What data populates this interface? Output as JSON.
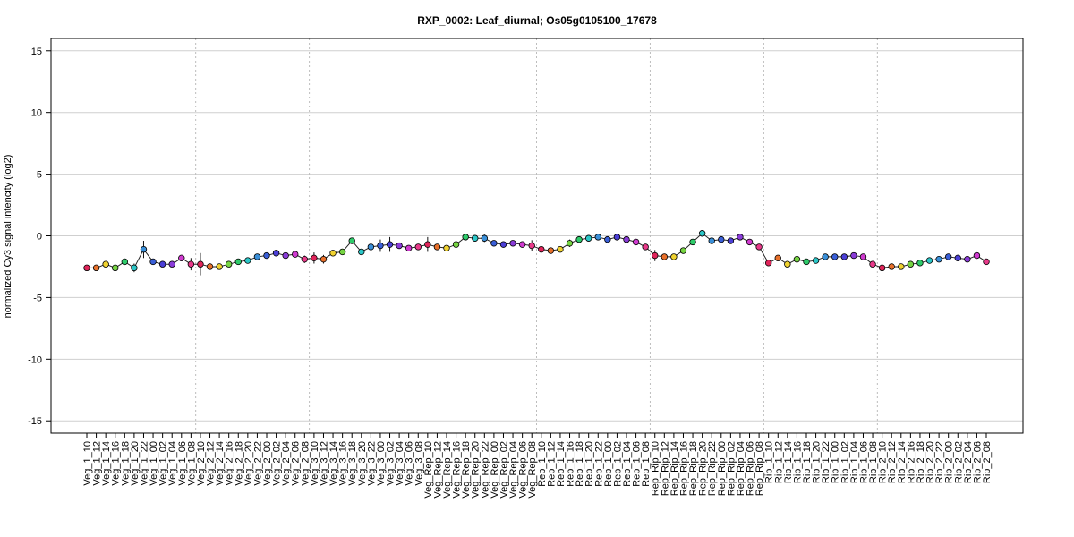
{
  "chart_data": {
    "type": "line",
    "title": "RXP_0002: Leaf_diurnal; Os05g0105100_17678",
    "xlabel": "",
    "ylabel": "normalized Cy3 signal intencity (log2)",
    "ylim": [
      -16,
      16
    ],
    "yticks": [
      -15,
      -10,
      -5,
      0,
      5,
      10,
      15
    ],
    "grid": "horizontal at y ticks; dotted vertical separators between groups",
    "categories": [
      "Veg_1_10",
      "Veg_1_12",
      "Veg_1_14",
      "Veg_1_16",
      "Veg_1_18",
      "Veg_1_20",
      "Veg_1_22",
      "Veg_1_00",
      "Veg_1_02",
      "Veg_1_04",
      "Veg_1_06",
      "Veg_1_08",
      "Veg_2_10",
      "Veg_2_12",
      "Veg_2_14",
      "Veg_2_16",
      "Veg_2_18",
      "Veg_2_20",
      "Veg_2_22",
      "Veg_2_00",
      "Veg_2_02",
      "Veg_2_04",
      "Veg_2_06",
      "Veg_2_08",
      "Veg_3_10",
      "Veg_3_12",
      "Veg_3_14",
      "Veg_3_16",
      "Veg_3_18",
      "Veg_3_20",
      "Veg_3_22",
      "Veg_3_00",
      "Veg_3_02",
      "Veg_3_04",
      "Veg_3_06",
      "Veg_3_08",
      "Veg_Rep_10",
      "Veg_Rep_12",
      "Veg_Rep_14",
      "Veg_Rep_16",
      "Veg_Rep_18",
      "Veg_Rep_20",
      "Veg_Rep_22",
      "Veg_Rep_00",
      "Veg_Rep_02",
      "Veg_Rep_04",
      "Veg_Rep_06",
      "Veg_Rep_08",
      "Rep_1_10",
      "Rep_1_12",
      "Rep_1_14",
      "Rep_1_16",
      "Rep_1_18",
      "Rep_1_20",
      "Rep_1_22",
      "Rep_1_00",
      "Rep_1_02",
      "Rep_1_04",
      "Rep_1_06",
      "Rep_1_08",
      "Rep_Rip_10",
      "Rep_Rip_12",
      "Rep_Rip_14",
      "Rep_Rip_16",
      "Rep_Rip_18",
      "Rep_Rip_20",
      "Rep_Rip_22",
      "Rep_Rip_00",
      "Rep_Rip_02",
      "Rep_Rip_04",
      "Rep_Rip_06",
      "Rep_Rip_08",
      "Rip_1_10",
      "Rip_1_12",
      "Rip_1_14",
      "Rip_1_16",
      "Rip_1_18",
      "Rip_1_20",
      "Rip_1_22",
      "Rip_1_00",
      "Rip_1_02",
      "Rip_1_04",
      "Rip_1_06",
      "Rip_1_08",
      "Rip_2_10",
      "Rip_2_12",
      "Rip_2_14",
      "Rip_2_16",
      "Rip_2_18",
      "Rip_2_20",
      "Rip_2_22",
      "Rip_2_00",
      "Rip_2_02",
      "Rip_2_04",
      "Rip_2_06",
      "Rip_2_08"
    ],
    "values": [
      -2.6,
      -2.6,
      -2.3,
      -2.6,
      -2.1,
      -2.6,
      -1.1,
      -2.1,
      -2.3,
      -2.3,
      -1.8,
      -2.3,
      -2.3,
      -2.5,
      -2.5,
      -2.3,
      -2.1,
      -2.0,
      -1.7,
      -1.6,
      -1.4,
      -1.6,
      -1.5,
      -1.9,
      -1.8,
      -1.9,
      -1.4,
      -1.3,
      -0.4,
      -1.3,
      -0.9,
      -0.8,
      -0.7,
      -0.8,
      -1.0,
      -0.9,
      -0.7,
      -0.9,
      -1.0,
      -0.7,
      -0.1,
      -0.2,
      -0.2,
      -0.6,
      -0.7,
      -0.6,
      -0.7,
      -0.8,
      -1.1,
      -1.2,
      -1.1,
      -0.6,
      -0.3,
      -0.2,
      -0.1,
      -0.3,
      -0.1,
      -0.3,
      -0.5,
      -0.9,
      -1.6,
      -1.7,
      -1.7,
      -1.2,
      -0.5,
      0.2,
      -0.4,
      -0.3,
      -0.4,
      -0.1,
      -0.5,
      -0.9,
      -2.2,
      -1.8,
      -2.3,
      -1.9,
      -2.1,
      -2.0,
      -1.7,
      -1.7,
      -1.7,
      -1.6,
      -1.7,
      -2.3,
      -2.6,
      -2.5,
      -2.5,
      -2.3,
      -2.2,
      -2.0,
      -1.9,
      -1.7,
      -1.8,
      -1.9,
      -1.6,
      -2.1
    ],
    "errors": [
      0.15,
      0.1,
      0.1,
      0.1,
      0.1,
      0.35,
      0.7,
      0.1,
      0.1,
      0.1,
      0.1,
      0.5,
      0.9,
      0.1,
      0.1,
      0.1,
      0.1,
      0.1,
      0.1,
      0.1,
      0.25,
      0.1,
      0.2,
      0.3,
      0.45,
      0.35,
      0.1,
      0.1,
      0.2,
      0.2,
      0.25,
      0.5,
      0.6,
      0.2,
      0.2,
      0.25,
      0.6,
      0.2,
      0.2,
      0.15,
      0.1,
      0.1,
      0.3,
      0.1,
      0.1,
      0.1,
      0.1,
      0.45,
      0.1,
      0.1,
      0.1,
      0.3,
      0.15,
      0.15,
      0.1,
      0.1,
      0.1,
      0.1,
      0.1,
      0.1,
      0.45,
      0.1,
      0.1,
      0.1,
      0.1,
      0.2,
      0.1,
      0.1,
      0.1,
      0.1,
      0.1,
      0.1,
      0.1,
      0.15,
      0.1,
      0.1,
      0.1,
      0.1,
      0.1,
      0.1,
      0.1,
      0.1,
      0.1,
      0.1,
      0.1,
      0.1,
      0.1,
      0.1,
      0.1,
      0.1,
      0.1,
      0.1,
      0.1,
      0.25,
      0.1,
      0.25
    ],
    "point_colors": [
      "#e0245a",
      "#e8702a",
      "#f0d230",
      "#76d442",
      "#2ecb6a",
      "#2bc7c8",
      "#3a8fd8",
      "#3a5fd8",
      "#4b3fd6",
      "#8a3cd8",
      "#d03ad0",
      "#e83a8a",
      "#e0245a",
      "#e8702a",
      "#f0d230",
      "#76d442",
      "#2ecb6a",
      "#2bc7c8",
      "#3a8fd8",
      "#3a5fd8",
      "#4b3fd6",
      "#8a3cd8",
      "#d03ad0",
      "#e83a8a",
      "#e0245a",
      "#e8702a",
      "#f0d230",
      "#76d442",
      "#2ecb6a",
      "#2bc7c8",
      "#3a8fd8",
      "#3a5fd8",
      "#4b3fd6",
      "#8a3cd8",
      "#d03ad0",
      "#e83a8a",
      "#e0245a",
      "#e8702a",
      "#f0d230",
      "#76d442",
      "#2ecb6a",
      "#2bc7c8",
      "#3a8fd8",
      "#3a5fd8",
      "#4b3fd6",
      "#8a3cd8",
      "#d03ad0",
      "#e83a8a",
      "#e0245a",
      "#e8702a",
      "#f0d230",
      "#76d442",
      "#2ecb6a",
      "#2bc7c8",
      "#3a8fd8",
      "#3a5fd8",
      "#4b3fd6",
      "#8a3cd8",
      "#d03ad0",
      "#e83a8a",
      "#e0245a",
      "#e8702a",
      "#f0d230",
      "#76d442",
      "#2ecb6a",
      "#2bc7c8",
      "#3a8fd8",
      "#3a5fd8",
      "#4b3fd6",
      "#8a3cd8",
      "#d03ad0",
      "#e83a8a",
      "#e0245a",
      "#e8702a",
      "#f0d230",
      "#76d442",
      "#2ecb6a",
      "#2bc7c8",
      "#3a8fd8",
      "#3a5fd8",
      "#4b3fd6",
      "#8a3cd8",
      "#d03ad0",
      "#e83a8a",
      "#e0245a",
      "#e8702a",
      "#f0d230",
      "#76d442",
      "#2ecb6a",
      "#2bc7c8",
      "#3a8fd8",
      "#3a5fd8",
      "#4b3fd6",
      "#8a3cd8",
      "#d03ad0",
      "#e83a8a"
    ],
    "group_boundaries_after_index": [
      11,
      23,
      47,
      59,
      71,
      83
    ]
  }
}
